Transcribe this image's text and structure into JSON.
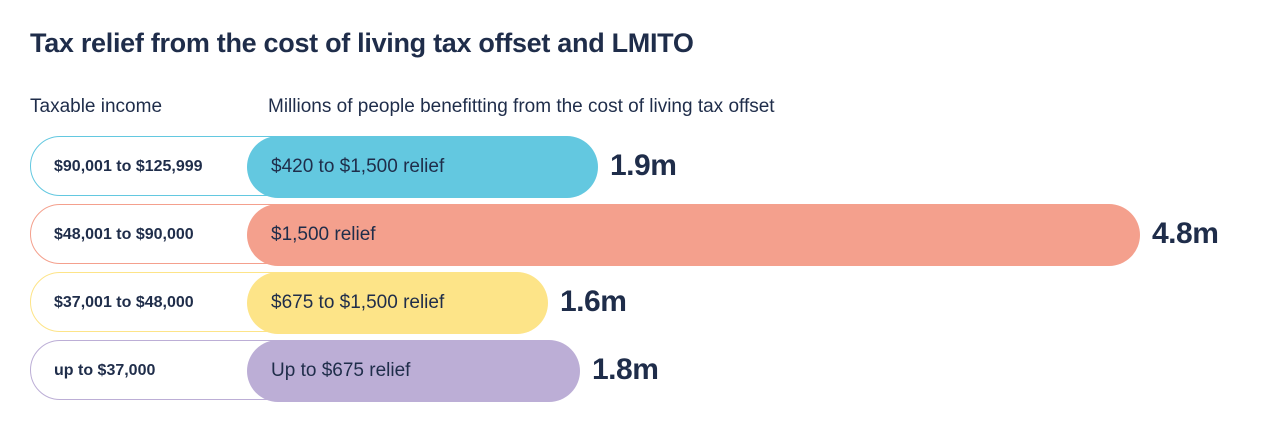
{
  "title": "Tax relief from the cost of living tax offset and LMITO",
  "headers": {
    "left": "Taxable income",
    "right": "Millions of people benefitting from the cost of living tax offset"
  },
  "rows": [
    {
      "income": "$90,001 to $125,999",
      "relief": "$420 to $1,500 relief",
      "value": "1.9m",
      "color": "#63c8e0",
      "outline": "#63c8e0"
    },
    {
      "income": "$48,001 to $90,000",
      "relief": "$1,500 relief",
      "value": "4.8m",
      "color": "#f4a08d",
      "outline": "#f4a08d"
    },
    {
      "income": "$37,001 to $48,000",
      "relief": "$675 to $1,500 relief",
      "value": "1.6m",
      "color": "#fde488",
      "outline": "#fde488"
    },
    {
      "income": "up to $37,000",
      "relief": "Up to $675 relief",
      "value": "1.8m",
      "color": "#bcaed6",
      "outline": "#bcaed6"
    }
  ],
  "chart_data": {
    "type": "bar",
    "orientation": "horizontal",
    "title": "Tax relief from the cost of living tax offset and LMITO",
    "xlabel": "Millions of people benefitting from the cost of living tax offset",
    "ylabel": "Taxable income",
    "categories": [
      "$90,001 to $125,999",
      "$48,001 to $90,000",
      "$37,001 to $48,000",
      "up to $37,000"
    ],
    "bar_labels": [
      "$420 to $1,500 relief",
      "$1,500 relief",
      "$675 to $1,500 relief",
      "Up to $675 relief"
    ],
    "values": [
      1.9,
      4.8,
      1.6,
      1.8
    ],
    "value_labels": [
      "1.9m",
      "4.8m",
      "1.6m",
      "1.8m"
    ],
    "units": "millions of people",
    "colors": [
      "#63c8e0",
      "#f4a08d",
      "#fde488",
      "#bcaed6"
    ],
    "grid": false,
    "legend": "none"
  }
}
